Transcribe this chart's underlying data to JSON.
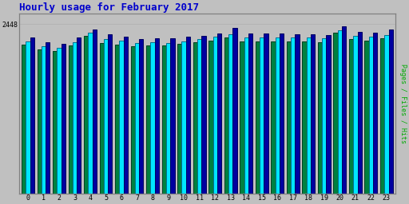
{
  "title": "Hourly usage for February 2017",
  "title_color": "#0000cc",
  "title_fontsize": 9,
  "background_color": "#c0c0c0",
  "plot_bg_color": "#c0c0c0",
  "ylabel_right": "Pages / Files / Hits",
  "ylabel_right_color": "#00aa00",
  "ylim_max": 2600,
  "ytick_value": 2448,
  "ytick_label": "2448",
  "hours": [
    0,
    1,
    2,
    3,
    4,
    5,
    6,
    7,
    8,
    9,
    10,
    11,
    12,
    13,
    14,
    15,
    16,
    17,
    18,
    19,
    20,
    21,
    22,
    23
  ],
  "pages": [
    2150,
    2080,
    2060,
    2140,
    2280,
    2170,
    2150,
    2130,
    2140,
    2140,
    2160,
    2180,
    2210,
    2250,
    2200,
    2200,
    2200,
    2200,
    2200,
    2190,
    2320,
    2230,
    2210,
    2240
  ],
  "files": [
    2200,
    2130,
    2110,
    2190,
    2320,
    2230,
    2210,
    2175,
    2180,
    2175,
    2200,
    2230,
    2260,
    2300,
    2250,
    2250,
    2250,
    2250,
    2250,
    2240,
    2360,
    2280,
    2260,
    2290
  ],
  "hits": [
    2250,
    2180,
    2160,
    2250,
    2370,
    2300,
    2270,
    2230,
    2240,
    2240,
    2260,
    2280,
    2310,
    2390,
    2310,
    2310,
    2310,
    2300,
    2300,
    2290,
    2420,
    2340,
    2320,
    2370
  ],
  "color_pages": "#008040",
  "color_files": "#00e5ff",
  "color_hits": "#0000a0",
  "edge_pages": "#004020",
  "edge_files": "#007090",
  "edge_hits": "#000060",
  "bar_width": 0.27,
  "font_family": "monospace",
  "grid_color": "#b0b0b0",
  "border_color": "#808080"
}
